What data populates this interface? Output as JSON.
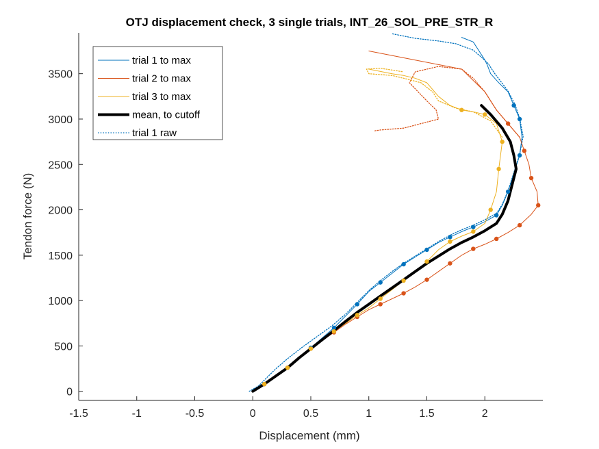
{
  "chart_data": {
    "type": "line",
    "title": "OTJ displacement check, 3 single trials, INT_26_SOL_PRE_STR_R",
    "xlabel": "Displacement (mm)",
    "ylabel": "Tendon force (N)",
    "xlim": [
      -1.5,
      2.5
    ],
    "ylim": [
      -100,
      3950
    ],
    "xticks": [
      "-1.5",
      "-1",
      "-0.5",
      "0",
      "0.5",
      "1",
      "1.5",
      "2"
    ],
    "yticks": [
      "0",
      "500",
      "1000",
      "1500",
      "2000",
      "2500",
      "3000",
      "3500"
    ],
    "grid": false,
    "legend_position": "top-left",
    "colors": {
      "trial1": "#0072BD",
      "trial2": "#D95319",
      "trial3": "#EDB120",
      "mean": "#000000"
    },
    "series": [
      {
        "name": "trial 1 to max",
        "style": "solid-thin",
        "color": "#0072BD",
        "x": [
          0,
          0.1,
          0.2,
          0.3,
          0.4,
          0.5,
          0.6,
          0.7,
          0.8,
          0.9,
          1.0,
          1.1,
          1.2,
          1.3,
          1.4,
          1.5,
          1.6,
          1.7,
          1.8,
          1.9,
          2.0,
          2.1,
          2.15,
          2.2,
          2.25,
          2.3,
          2.32,
          2.3,
          2.25,
          2.2,
          2.12,
          2.05,
          2.02,
          2.0,
          1.95,
          1.9,
          1.8
        ],
        "y": [
          0,
          80,
          170,
          260,
          370,
          480,
          590,
          700,
          830,
          960,
          1100,
          1200,
          1300,
          1400,
          1480,
          1560,
          1640,
          1700,
          1760,
          1810,
          1870,
          1940,
          2050,
          2200,
          2400,
          2600,
          2800,
          3000,
          3150,
          3300,
          3400,
          3500,
          3600,
          3650,
          3750,
          3850,
          3900
        ]
      },
      {
        "name": "trial 2 to max",
        "style": "solid-thin",
        "color": "#D95319",
        "x": [
          0,
          0.1,
          0.2,
          0.3,
          0.4,
          0.5,
          0.6,
          0.7,
          0.8,
          0.9,
          1.0,
          1.1,
          1.2,
          1.3,
          1.4,
          1.5,
          1.6,
          1.7,
          1.8,
          1.9,
          2.0,
          2.1,
          2.2,
          2.3,
          2.4,
          2.46,
          2.45,
          2.4,
          2.38,
          2.34,
          2.3,
          2.2,
          2.1,
          2.0,
          1.8,
          1.6,
          1.4,
          1.2,
          1.0
        ],
        "y": [
          0,
          80,
          170,
          260,
          370,
          470,
          560,
          650,
          740,
          820,
          900,
          960,
          1020,
          1080,
          1150,
          1230,
          1320,
          1410,
          1500,
          1570,
          1620,
          1680,
          1750,
          1830,
          1950,
          2050,
          2200,
          2350,
          2500,
          2650,
          2800,
          2950,
          3100,
          3300,
          3550,
          3600,
          3650,
          3700,
          3750
        ]
      },
      {
        "name": "trial 3 to max",
        "style": "solid-thin",
        "color": "#EDB120",
        "x": [
          0,
          0.1,
          0.2,
          0.3,
          0.4,
          0.5,
          0.6,
          0.7,
          0.8,
          0.9,
          1.0,
          1.1,
          1.2,
          1.3,
          1.4,
          1.5,
          1.6,
          1.7,
          1.8,
          1.9,
          2.0,
          2.05,
          2.1,
          2.12,
          2.15,
          2.1,
          2.0,
          1.9,
          1.8,
          1.7,
          1.6,
          1.5,
          1.4,
          1.3,
          1.2,
          1.0
        ],
        "y": [
          0,
          80,
          170,
          260,
          370,
          470,
          570,
          660,
          750,
          840,
          920,
          1020,
          1120,
          1220,
          1320,
          1430,
          1560,
          1650,
          1710,
          1760,
          1850,
          2000,
          2200,
          2450,
          2750,
          2950,
          3050,
          3080,
          3100,
          3150,
          3250,
          3400,
          3450,
          3480,
          3500,
          3550
        ]
      },
      {
        "name": "mean, to cutoff",
        "style": "solid-thick",
        "color": "#000000",
        "x": [
          0,
          0.1,
          0.2,
          0.3,
          0.4,
          0.5,
          0.6,
          0.7,
          0.8,
          0.9,
          1.0,
          1.1,
          1.2,
          1.3,
          1.4,
          1.5,
          1.6,
          1.7,
          1.8,
          1.9,
          2.0,
          2.1,
          2.15,
          2.2,
          2.22,
          2.25,
          2.27,
          2.25,
          2.22,
          2.15,
          2.05,
          1.97
        ],
        "y": [
          0,
          80,
          170,
          260,
          370,
          470,
          570,
          670,
          770,
          870,
          960,
          1050,
          1140,
          1230,
          1320,
          1410,
          1490,
          1570,
          1640,
          1700,
          1770,
          1850,
          1950,
          2100,
          2200,
          2350,
          2450,
          2600,
          2750,
          2900,
          3050,
          3150
        ]
      },
      {
        "name": "trial 1 raw",
        "style": "dotted",
        "color": "#0072BD",
        "x": [
          -0.03,
          0.05,
          0.12,
          0.2,
          0.3,
          0.42,
          0.55,
          0.68,
          0.8,
          0.9,
          1.0,
          1.1,
          1.2,
          1.3,
          1.4,
          1.5,
          1.6,
          1.7,
          1.8,
          1.9,
          2.0,
          2.1,
          2.15,
          2.2,
          2.25,
          2.3,
          2.33,
          2.3,
          2.26,
          2.2,
          2.14,
          2.08,
          2.03,
          1.98,
          1.9,
          1.75,
          1.6,
          1.4,
          1.2
        ],
        "y": [
          0,
          60,
          150,
          250,
          360,
          480,
          600,
          720,
          850,
          980,
          1110,
          1220,
          1320,
          1410,
          1490,
          1570,
          1650,
          1720,
          1780,
          1830,
          1890,
          1960,
          2060,
          2210,
          2410,
          2610,
          2810,
          3010,
          3160,
          3310,
          3410,
          3510,
          3610,
          3670,
          3760,
          3830,
          3860,
          3890,
          3940
        ]
      },
      {
        "name": "",
        "style": "dotted",
        "color": "#D95319",
        "x": [
          2.3,
          2.2,
          2.1,
          2.0,
          1.9,
          1.8,
          1.6,
          1.4,
          1.35,
          1.5,
          1.58,
          1.6,
          1.45,
          1.3,
          1.1,
          1.05
        ],
        "y": [
          2800,
          2950,
          3100,
          3300,
          3450,
          3550,
          3580,
          3520,
          3400,
          3200,
          3100,
          3000,
          2950,
          2900,
          2880,
          2870
        ]
      },
      {
        "name": "",
        "style": "dotted",
        "color": "#EDB120",
        "x": [
          2.15,
          2.05,
          1.9,
          1.75,
          1.6,
          1.55,
          1.45,
          1.3,
          1.2,
          1.0,
          0.98,
          1.1,
          1.3
        ],
        "y": [
          2800,
          2980,
          3080,
          3120,
          3200,
          3300,
          3400,
          3450,
          3480,
          3500,
          3550,
          3560,
          3520
        ]
      }
    ],
    "legend": [
      {
        "label": "trial 1 to max",
        "key": "trial1",
        "style": "solid-thin"
      },
      {
        "label": "trial 2 to max",
        "key": "trial2",
        "style": "solid-thin"
      },
      {
        "label": "trial 3 to max",
        "key": "trial3",
        "style": "solid-thin"
      },
      {
        "label": "mean, to cutoff",
        "key": "mean",
        "style": "solid-thick"
      },
      {
        "label": "trial 1 raw",
        "key": "trial1",
        "style": "dotted"
      }
    ],
    "markers": {
      "trial1": {
        "x": [
          0.1,
          0.3,
          0.5,
          0.7,
          0.9,
          1.1,
          1.3,
          1.5,
          1.7,
          1.9,
          2.1,
          2.2,
          2.3,
          2.3,
          2.25
        ],
        "y": [
          80,
          260,
          480,
          700,
          960,
          1200,
          1400,
          1560,
          1700,
          1810,
          1940,
          2200,
          2600,
          3000,
          3150
        ]
      },
      "trial2": {
        "x": [
          0.1,
          0.3,
          0.5,
          0.7,
          0.9,
          1.1,
          1.3,
          1.5,
          1.7,
          1.9,
          2.1,
          2.3,
          2.46,
          2.4,
          2.34,
          2.2
        ],
        "y": [
          80,
          260,
          470,
          650,
          820,
          960,
          1080,
          1230,
          1410,
          1570,
          1680,
          1830,
          2050,
          2350,
          2650,
          2950
        ]
      },
      "trial3": {
        "x": [
          0.1,
          0.3,
          0.5,
          0.7,
          0.9,
          1.1,
          1.3,
          1.5,
          1.7,
          1.9,
          2.05,
          2.12,
          2.15,
          2.0,
          1.8
        ],
        "y": [
          80,
          260,
          470,
          660,
          840,
          1020,
          1220,
          1430,
          1650,
          1760,
          2000,
          2450,
          2750,
          3050,
          3100
        ]
      }
    }
  }
}
